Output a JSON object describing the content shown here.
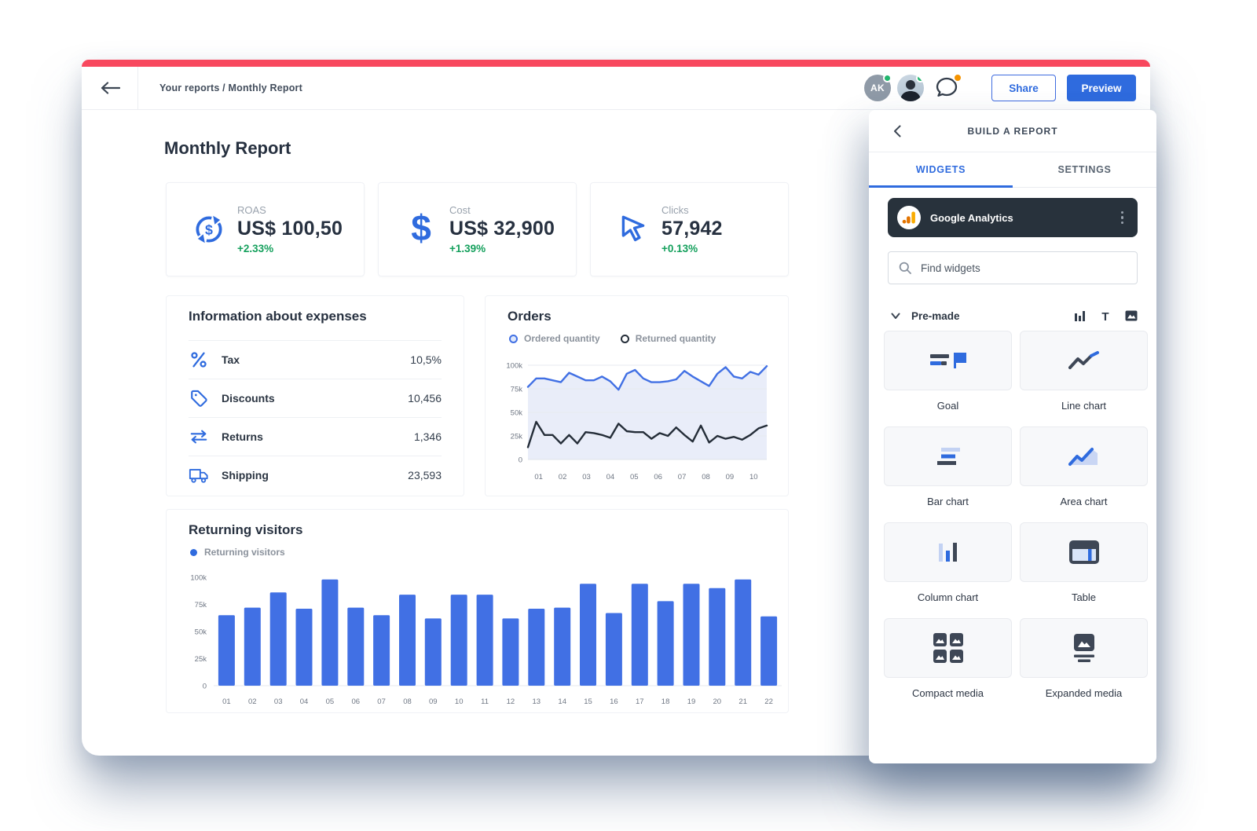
{
  "colors": {
    "accent_blue": "#2f6bde",
    "chart_blue": "#4170e4",
    "chart_dark": "#242d38",
    "area_fill": "#e9edf9",
    "red_strip": "#f8485e",
    "green_positive": "#14a05c",
    "navy_card": "#28323c",
    "ga_orange": "#f9ab00"
  },
  "topbar": {
    "breadcrumb": "Your reports / Monthly Report",
    "avatar_initials": "AK",
    "share_label": "Share",
    "preview_label": "Preview"
  },
  "page": {
    "title": "Monthly Report"
  },
  "kpis": [
    {
      "label": "ROAS",
      "value": "US$ 100,50",
      "delta": "+2.33%"
    },
    {
      "label": "Cost",
      "value": "US$ 32,900",
      "delta": "+1.39%"
    },
    {
      "label": "Clicks",
      "value": "57,942",
      "delta": "+0.13%"
    }
  ],
  "expenses": {
    "title": "Information about expenses",
    "rows": [
      {
        "label": "Tax",
        "value": "10,5%"
      },
      {
        "label": "Discounts",
        "value": "10,456"
      },
      {
        "label": "Returns",
        "value": "1,346"
      },
      {
        "label": "Shipping",
        "value": "23,593"
      }
    ]
  },
  "orders_section": {
    "title": "Orders"
  },
  "visitors_section": {
    "title": "Returning visitors"
  },
  "chart_data": [
    {
      "id": "orders",
      "type": "line",
      "title": "Orders",
      "x_tick_labels": [
        "01",
        "02",
        "03",
        "04",
        "05",
        "06",
        "07",
        "08",
        "09",
        "10"
      ],
      "y_tick_labels": [
        "100k",
        "75k",
        "50k",
        "25k",
        "0"
      ],
      "ylim": [
        0,
        100000
      ],
      "grid": true,
      "legend_position": "top",
      "series": [
        {
          "name": "Ordered quantity",
          "color": "#4170e4",
          "fill": "#e9edf9",
          "values_k": [
            77,
            86,
            86,
            84,
            82,
            92,
            88,
            84,
            84,
            88,
            83,
            74,
            91,
            95,
            86,
            82,
            82,
            83,
            85,
            94,
            88,
            83,
            78,
            91,
            98,
            88,
            86,
            93,
            90,
            99
          ]
        },
        {
          "name": "Returned quantity",
          "color": "#242d38",
          "values_k": [
            13,
            40,
            26,
            26,
            17,
            26,
            17,
            29,
            28,
            26,
            23,
            38,
            30,
            29,
            29,
            22,
            28,
            25,
            34,
            26,
            19,
            36,
            18,
            25,
            22,
            24,
            21,
            26,
            33,
            36
          ]
        }
      ]
    },
    {
      "id": "visitors",
      "type": "bar",
      "title": "Returning visitors",
      "categories": [
        "01",
        "02",
        "03",
        "04",
        "05",
        "06",
        "07",
        "08",
        "09",
        "10",
        "11",
        "12",
        "13",
        "14",
        "15",
        "16",
        "17",
        "18",
        "19",
        "20",
        "21",
        "22"
      ],
      "y_tick_labels": [
        "100k",
        "75k",
        "50k",
        "25k",
        "0"
      ],
      "ylim": [
        0,
        100000
      ],
      "grid": false,
      "series": [
        {
          "name": "Returning visitors",
          "color": "#4170e4",
          "values_k": [
            65,
            72,
            86,
            71,
            98,
            72,
            65,
            84,
            62,
            84,
            84,
            62,
            71,
            72,
            94,
            67,
            94,
            78,
            94,
            90,
            98,
            64
          ]
        }
      ]
    }
  ],
  "sidebar": {
    "title": "BUILD A REPORT",
    "tabs": [
      {
        "label": "WIDGETS"
      },
      {
        "label": "SETTINGS"
      }
    ],
    "source": {
      "name": "Google Analytics"
    },
    "search_placeholder": "Find widgets",
    "section_label": "Pre-made",
    "widgets": [
      {
        "label": "Goal"
      },
      {
        "label": "Line chart"
      },
      {
        "label": "Bar chart"
      },
      {
        "label": "Area chart"
      },
      {
        "label": "Column chart"
      },
      {
        "label": "Table"
      },
      {
        "label": "Compact media"
      },
      {
        "label": "Expanded media"
      }
    ]
  }
}
